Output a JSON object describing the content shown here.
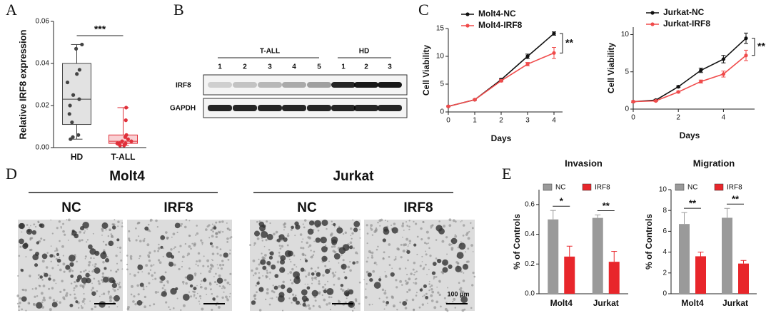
{
  "panel_letters": [
    "A",
    "B",
    "C",
    "D",
    "E"
  ],
  "chart_data": [
    {
      "type": "box",
      "ylabel": "Relative IRF8 expression",
      "categories": [
        "HD",
        "T-ALL"
      ],
      "ylim": [
        0,
        0.06
      ],
      "yticks": [
        {
          "value": 0,
          "label": "0.00"
        },
        {
          "value": 0.02,
          "label": "0.02"
        },
        {
          "value": 0.04,
          "label": "0.04"
        },
        {
          "value": 0.06,
          "label": "0.06"
        }
      ],
      "boxes": [
        {
          "color": "#444444",
          "fill": "#e2e2e2",
          "min": 0.004,
          "q1": 0.011,
          "median": 0.023,
          "q3": 0.04,
          "max": 0.049,
          "points": [
            0.049,
            0.047,
            0.037,
            0.035,
            0.031,
            0.025,
            0.023,
            0.02,
            0.016,
            0.012,
            0.006,
            0.005,
            0.004
          ]
        },
        {
          "color": "#e0303a",
          "fill": "#f9d0d3",
          "min": 0.001,
          "q1": 0.002,
          "median": 0.003,
          "q3": 0.006,
          "max": 0.019,
          "points": [
            0.019,
            0.013,
            0.006,
            0.005,
            0.004,
            0.003,
            0.003,
            0.002,
            0.002,
            0.002,
            0.001,
            0.001
          ]
        }
      ],
      "annotations": [
        "***"
      ]
    },
    {
      "type": "line",
      "xlabel": "Days",
      "ylabel": "Cell Viability",
      "x": [
        0,
        1,
        2,
        3,
        4
      ],
      "xlim": [
        0,
        4
      ],
      "xticks": [
        0,
        1,
        2,
        3,
        4
      ],
      "ylim": [
        0,
        15
      ],
      "yticks": [
        0,
        5,
        10,
        15
      ],
      "legend": "upper left",
      "series": [
        {
          "name": "Molt4-NC",
          "color": "#111111",
          "values": [
            1,
            2.2,
            5.8,
            10,
            14.1
          ],
          "errors": [
            0.1,
            0.1,
            0.2,
            0.4,
            0.3
          ]
        },
        {
          "name": "Molt4-IRF8",
          "color": "#f04b4b",
          "values": [
            1,
            2.2,
            5.6,
            8.6,
            10.6
          ],
          "errors": [
            0.1,
            0.1,
            0.2,
            0.3,
            1
          ]
        }
      ],
      "annotations": [
        "**"
      ]
    },
    {
      "type": "line",
      "xlabel": "Days",
      "ylabel": "Cell Viability",
      "x": [
        0,
        1,
        2,
        3,
        4,
        5
      ],
      "xlim": [
        0,
        5
      ],
      "xticks": [
        0,
        2,
        4
      ],
      "ylim": [
        0,
        11
      ],
      "yticks": [
        0,
        5,
        10
      ],
      "legend": "upper left",
      "series": [
        {
          "name": "Jurkat-NC",
          "color": "#111111",
          "values": [
            1,
            1.2,
            3,
            5.2,
            6.7,
            9.5
          ],
          "errors": [
            0.1,
            0.1,
            0.1,
            0.3,
            0.5,
            0.7
          ]
        },
        {
          "name": "Jurkat-IRF8",
          "color": "#f04b4b",
          "values": [
            1,
            1.1,
            2.3,
            3.7,
            4.7,
            7.2
          ],
          "errors": [
            0.1,
            0.1,
            0.1,
            0.2,
            0.4,
            0.7
          ]
        }
      ],
      "annotations": [
        "**"
      ]
    },
    {
      "type": "bar",
      "title": "Invasion",
      "ylabel": "% of Controls",
      "categories": [
        "Molt4",
        "Jurkat"
      ],
      "ylim": [
        0,
        0.7
      ],
      "yticks": [
        {
          "value": 0,
          "label": "0.0"
        },
        {
          "value": 0.2,
          "label": "0.2"
        },
        {
          "value": 0.4,
          "label": "0.4"
        },
        {
          "value": 0.6,
          "label": "0.6"
        }
      ],
      "series": [
        {
          "name": "NC",
          "color": "#9a9a9a",
          "values": [
            0.5,
            0.51
          ],
          "errors": [
            0.06,
            0.02
          ]
        },
        {
          "name": "IRF8",
          "color": "#e8262b",
          "values": [
            0.25,
            0.215
          ],
          "errors": [
            0.07,
            0.07
          ]
        }
      ],
      "annotations": [
        "*",
        "**"
      ]
    },
    {
      "type": "bar",
      "title": "Migration",
      "ylabel": "% of Controls",
      "categories": [
        "Molt4",
        "Jurkat"
      ],
      "ylim": [
        0,
        10
      ],
      "yticks": [
        0,
        2,
        4,
        6,
        8,
        10
      ],
      "series": [
        {
          "name": "NC",
          "color": "#9a9a9a",
          "values": [
            6.7,
            7.3
          ],
          "errors": [
            1.1,
            0.9
          ]
        },
        {
          "name": "IRF8",
          "color": "#e8262b",
          "values": [
            3.6,
            2.9
          ],
          "errors": [
            0.4,
            0.3
          ]
        }
      ],
      "annotations": [
        "**",
        "**"
      ]
    }
  ],
  "blot": {
    "groups": [
      "T-ALL",
      "HD"
    ],
    "lanes": [
      "1",
      "2",
      "3",
      "4",
      "5",
      "1",
      "2",
      "3"
    ],
    "rows": [
      "IRF8",
      "GAPDH"
    ]
  },
  "micrographs": {
    "cell_lines": [
      "Molt4",
      "Jurkat"
    ],
    "conditions": [
      "NC",
      "IRF8",
      "NC",
      "IRF8"
    ],
    "scale_bar": "100 μm"
  }
}
